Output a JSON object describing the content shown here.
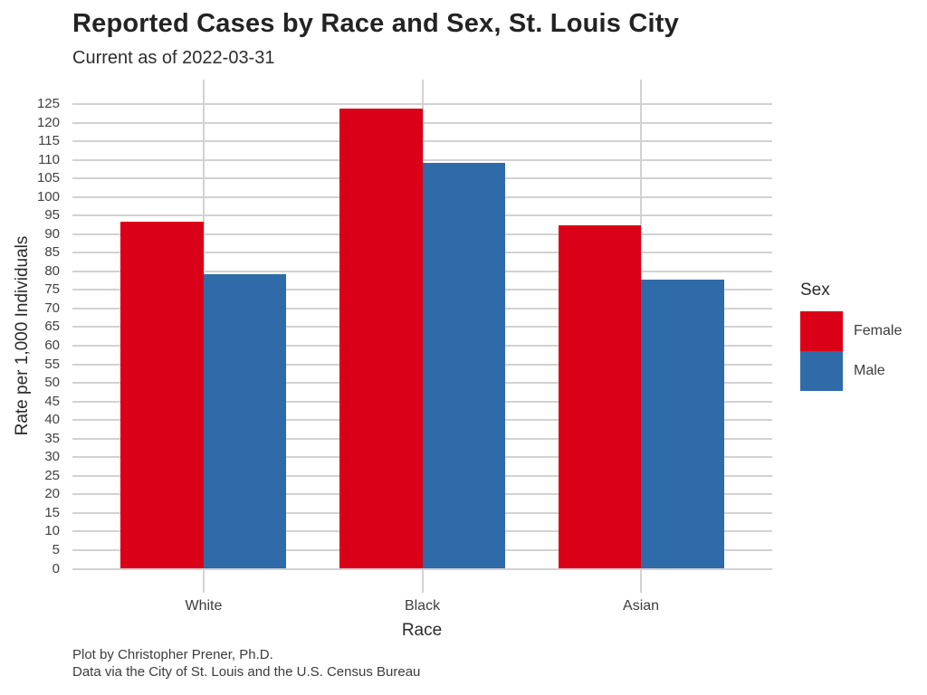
{
  "colors": {
    "background": "#ffffff",
    "gridline": "#d2d2d2",
    "female": "#da0018",
    "male": "#2e6ba8",
    "title_text": "#232323",
    "axis_text": "#414141"
  },
  "chart_data": {
    "type": "bar",
    "title": "Reported Cases by Race and Sex, St. Louis City",
    "subtitle": "Current as of 2022-03-31",
    "categories": [
      "White",
      "Black",
      "Asian"
    ],
    "series": [
      {
        "name": "Female",
        "color": "#da0018",
        "values": [
          93.4,
          123.8,
          92.3
        ]
      },
      {
        "name": "Male",
        "color": "#2e6ba8",
        "values": [
          79.2,
          109.2,
          77.8
        ]
      }
    ],
    "xlabel": "Race",
    "ylabel": "Rate per 1,000 Individuals",
    "ylim": [
      0,
      125
    ],
    "yticks": [
      0,
      5,
      10,
      15,
      20,
      25,
      30,
      35,
      40,
      45,
      50,
      55,
      60,
      65,
      70,
      75,
      80,
      85,
      90,
      95,
      100,
      105,
      110,
      115,
      120,
      125
    ],
    "grid": "horizontal major every 5; vertical at category centers; light gray on white",
    "legend": {
      "title": "Sex",
      "position": "right",
      "entries": [
        "Female",
        "Male"
      ]
    },
    "caption_line1": "Plot by Christopher Prener, Ph.D.",
    "caption_line2": "Data via the City of St. Louis and the U.S. Census Bureau"
  }
}
